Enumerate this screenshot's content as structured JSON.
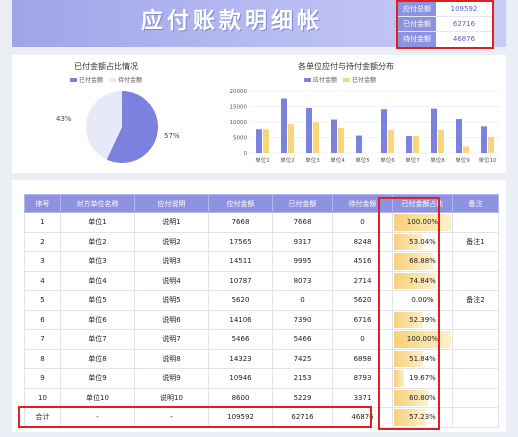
{
  "header": {
    "title": "应付账款明细帐",
    "summary": [
      {
        "label": "应付总额",
        "value": "109592"
      },
      {
        "label": "已付金额",
        "value": "62716"
      },
      {
        "label": "待付金额",
        "value": "46876"
      }
    ]
  },
  "chart_data": [
    {
      "type": "pie",
      "title": "已付金额占比情况",
      "legend": [
        "已付金额",
        "待付金额"
      ],
      "values": [
        57,
        43
      ],
      "labels": [
        "57%",
        "43%"
      ],
      "colors": [
        "#7b82dd",
        "#e8e9f8"
      ]
    },
    {
      "type": "bar",
      "title": "各单位应付与待付金额分布",
      "legend": [
        "应付金额",
        "已付金额"
      ],
      "categories": [
        "单位1",
        "单位2",
        "单位3",
        "单位4",
        "单位5",
        "单位6",
        "单位7",
        "单位8",
        "单位9",
        "单位10"
      ],
      "series": [
        {
          "name": "应付金额",
          "values": [
            7668,
            17565,
            14511,
            10787,
            5620,
            14106,
            5466,
            14323,
            10946,
            8600
          ],
          "color": "#7b82dd"
        },
        {
          "name": "已付金额",
          "values": [
            7668,
            9317,
            9995,
            8073,
            0,
            7390,
            5466,
            7425,
            2153,
            5229
          ],
          "color": "#f9d67a"
        }
      ],
      "yticks": [
        "20000",
        "15000",
        "10000",
        "5000",
        "0"
      ],
      "ylim": [
        0,
        20000
      ]
    }
  ],
  "table": {
    "headers": [
      "序号",
      "对方单位名称",
      "应付说明",
      "应付金额",
      "已付金额",
      "待付金额",
      "已付金额占比",
      "备注"
    ],
    "rows": [
      {
        "no": "1",
        "unit": "单位1",
        "desc": "说明1",
        "due": "7668",
        "paid": "7668",
        "pending": "0",
        "ratio": "100.00%",
        "ratio_val": 100.0,
        "note": ""
      },
      {
        "no": "2",
        "unit": "单位2",
        "desc": "说明2",
        "due": "17565",
        "paid": "9317",
        "pending": "8248",
        "ratio": "53.04%",
        "ratio_val": 53.04,
        "note": "备注1"
      },
      {
        "no": "3",
        "unit": "单位3",
        "desc": "说明3",
        "due": "14511",
        "paid": "9995",
        "pending": "4516",
        "ratio": "68.88%",
        "ratio_val": 68.88,
        "note": ""
      },
      {
        "no": "4",
        "unit": "单位4",
        "desc": "说明4",
        "due": "10787",
        "paid": "8073",
        "pending": "2714",
        "ratio": "74.84%",
        "ratio_val": 74.84,
        "note": ""
      },
      {
        "no": "5",
        "unit": "单位5",
        "desc": "说明5",
        "due": "5620",
        "paid": "0",
        "pending": "5620",
        "ratio": "0.00%",
        "ratio_val": 0,
        "note": "备注2"
      },
      {
        "no": "6",
        "unit": "单位6",
        "desc": "说明6",
        "due": "14106",
        "paid": "7390",
        "pending": "6716",
        "ratio": "52.39%",
        "ratio_val": 52.39,
        "note": ""
      },
      {
        "no": "7",
        "unit": "单位7",
        "desc": "说明7",
        "due": "5466",
        "paid": "5466",
        "pending": "0",
        "ratio": "100.00%",
        "ratio_val": 100.0,
        "note": ""
      },
      {
        "no": "8",
        "unit": "单位8",
        "desc": "说明8",
        "due": "14323",
        "paid": "7425",
        "pending": "6898",
        "ratio": "51.84%",
        "ratio_val": 51.84,
        "note": ""
      },
      {
        "no": "9",
        "unit": "单位9",
        "desc": "说明9",
        "due": "10946",
        "paid": "2153",
        "pending": "8793",
        "ratio": "19.67%",
        "ratio_val": 19.67,
        "note": ""
      },
      {
        "no": "10",
        "unit": "单位10",
        "desc": "说明10",
        "due": "8600",
        "paid": "5229",
        "pending": "3371",
        "ratio": "60.80%",
        "ratio_val": 60.8,
        "note": ""
      }
    ],
    "total": {
      "no": "合计",
      "unit": "-",
      "desc": "-",
      "due": "109592",
      "paid": "62716",
      "pending": "46876",
      "ratio": "57.23%",
      "ratio_val": 57.23,
      "note": ""
    }
  }
}
